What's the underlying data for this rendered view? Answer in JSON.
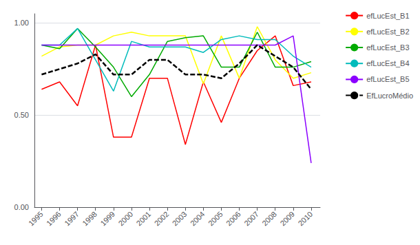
{
  "chart_data": {
    "type": "line",
    "x": [
      1995,
      1996,
      1997,
      1998,
      1999,
      2000,
      2001,
      2002,
      2003,
      2004,
      2005,
      2006,
      2007,
      2008,
      2009,
      2010
    ],
    "series": [
      {
        "name": "efLucEst_B1",
        "color": "#FF0000",
        "line_style": "solid",
        "values": [
          0.64,
          0.68,
          0.55,
          0.88,
          0.38,
          0.38,
          0.7,
          0.7,
          0.34,
          0.68,
          0.46,
          0.7,
          0.85,
          0.93,
          0.66,
          0.68
        ]
      },
      {
        "name": "efLucEst_B2",
        "color": "#FFFF00",
        "line_style": "solid",
        "values": [
          0.82,
          0.87,
          0.88,
          0.88,
          0.93,
          0.95,
          0.93,
          0.93,
          0.93,
          0.67,
          0.93,
          0.7,
          0.98,
          0.8,
          0.7,
          0.73
        ]
      },
      {
        "name": "efLucEst_B3",
        "color": "#00AA00",
        "line_style": "solid",
        "values": [
          0.88,
          0.86,
          0.97,
          0.87,
          0.76,
          0.6,
          0.72,
          0.9,
          0.92,
          0.93,
          0.76,
          0.76,
          0.95,
          0.76,
          0.76,
          0.79
        ]
      },
      {
        "name": "efLucEst_B4",
        "color": "#00BBBB",
        "line_style": "solid",
        "values": [
          0.88,
          0.88,
          0.97,
          0.8,
          0.63,
          0.9,
          0.87,
          0.87,
          0.87,
          0.84,
          0.91,
          0.93,
          0.91,
          0.91,
          0.82,
          0.76
        ]
      },
      {
        "name": "efLucEst_B5",
        "color": "#8B00FF",
        "line_style": "solid",
        "values": [
          0.88,
          0.88,
          0.88,
          0.88,
          0.88,
          0.88,
          0.88,
          0.88,
          0.88,
          0.88,
          0.88,
          0.88,
          0.88,
          0.88,
          0.93,
          0.24
        ]
      },
      {
        "name": "EfLucroMédio",
        "color": "#000000",
        "line_style": "dashed",
        "values": [
          0.72,
          0.75,
          0.78,
          0.83,
          0.72,
          0.72,
          0.8,
          0.8,
          0.72,
          0.72,
          0.7,
          0.78,
          0.88,
          0.82,
          0.76,
          0.64
        ]
      }
    ],
    "xlim": [
      1994.6,
      2010.5
    ],
    "xticks": [
      1995,
      1996,
      1997,
      1998,
      1999,
      2000,
      2001,
      2002,
      2003,
      2004,
      2005,
      2006,
      2007,
      2008,
      2009,
      2010
    ],
    "ylim": [
      0.0,
      1.05
    ],
    "yticks": [
      {
        "value": 0.0,
        "label": "0.00"
      },
      {
        "value": 0.5,
        "label": "0.50"
      },
      {
        "value": 1.0,
        "label": "1.00"
      }
    ],
    "grid": true,
    "legend": "upper right"
  }
}
